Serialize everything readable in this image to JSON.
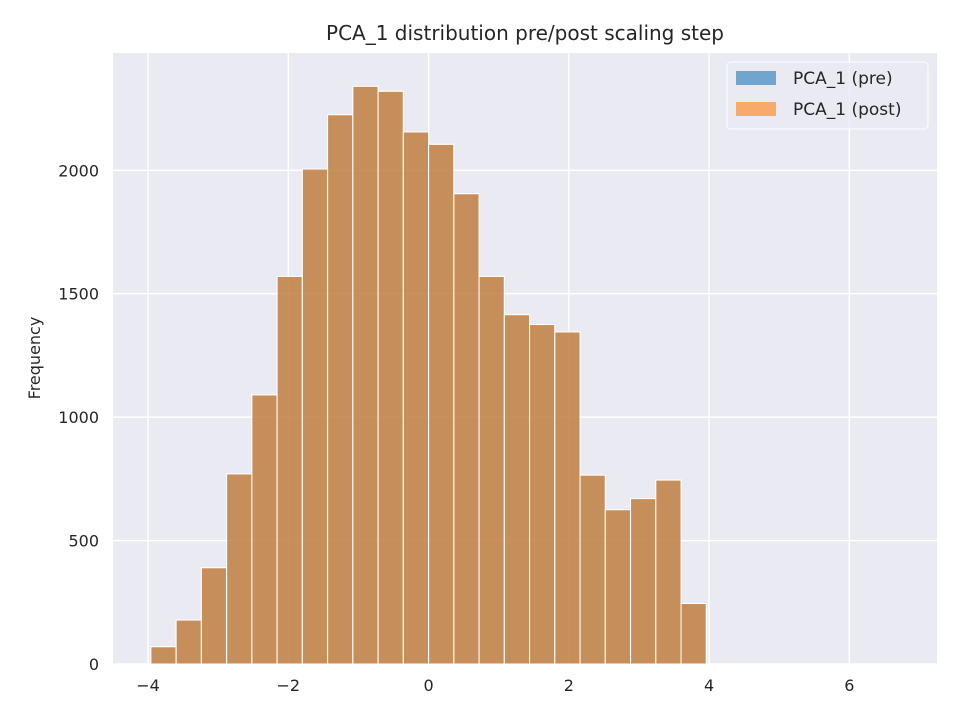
{
  "chart_data": {
    "type": "histogram",
    "title": "PCA_1 distribution pre/post scaling step",
    "xlabel": "",
    "ylabel": "Frequency",
    "xlim": [
      -4.5,
      7.25
    ],
    "ylim": [
      0,
      2475
    ],
    "xticks": [
      -4,
      -2,
      0,
      2,
      4,
      6
    ],
    "xtick_labels": [
      "−4",
      "−2",
      "0",
      "2",
      "4",
      "6"
    ],
    "yticks": [
      0,
      500,
      1000,
      1500,
      2000
    ],
    "ytick_labels": [
      "0",
      "500",
      "1000",
      "1500",
      "2000"
    ],
    "grid": true,
    "legend_position": "top-right",
    "bin_edges": [
      -3.96,
      -3.6,
      -3.24,
      -2.88,
      -2.52,
      -2.16,
      -1.8,
      -1.44,
      -1.08,
      -0.72,
      -0.36,
      0.0,
      0.36,
      0.72,
      1.08,
      1.44,
      1.8,
      2.16,
      2.52,
      2.88,
      3.24,
      3.6,
      3.96
    ],
    "series": [
      {
        "name": "PCA_1 (pre)",
        "color": "#1f77b4",
        "values": [
          70,
          178,
          390,
          770,
          1090,
          1570,
          2005,
          2225,
          2340,
          2320,
          2155,
          2105,
          1905,
          1570,
          1415,
          1375,
          1345,
          765,
          625,
          670,
          745,
          245
        ]
      },
      {
        "name": "PCA_1 (post)",
        "color": "#ff7f0e",
        "values": [
          70,
          178,
          390,
          770,
          1090,
          1570,
          2005,
          2225,
          2340,
          2320,
          2155,
          2105,
          1905,
          1570,
          1415,
          1375,
          1345,
          765,
          625,
          670,
          745,
          245
        ]
      }
    ],
    "overlap_color": "#c68c58",
    "plot_background": "#eaeaf2"
  }
}
